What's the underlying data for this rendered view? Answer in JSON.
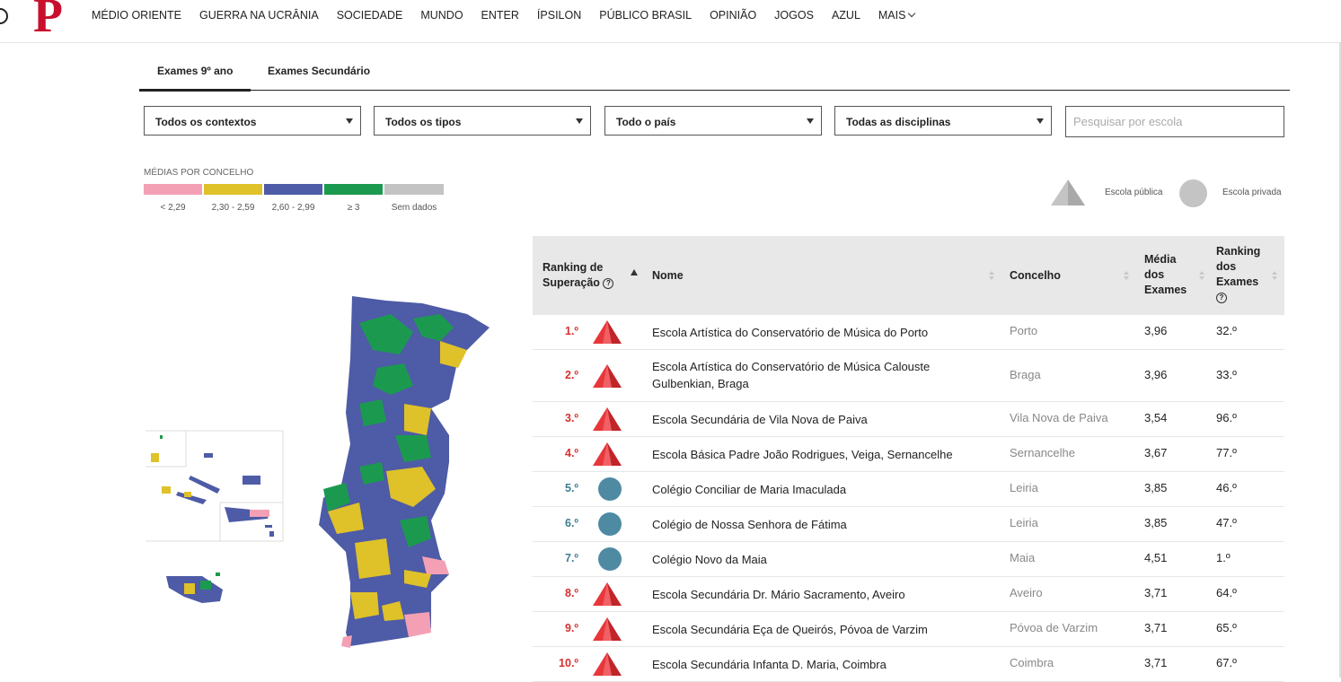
{
  "nav": {
    "items": [
      "MÉDIO ORIENTE",
      "GUERRA NA UCRÂNIA",
      "SOCIEDADE",
      "MUNDO",
      "ENTER",
      "ÍPSILON",
      "PÚBLICO BRASIL",
      "OPINIÃO",
      "JOGOS",
      "AZUL"
    ],
    "more": "MAIS"
  },
  "logo": {
    "letter": "P"
  },
  "tabs": [
    {
      "label": "Exames 9º ano",
      "active": true
    },
    {
      "label": "Exames Secundário",
      "active": false
    }
  ],
  "filters": {
    "contexto": "Todos os contextos",
    "tipo": "Todos os tipos",
    "regiao": "Todo o país",
    "disciplina": "Todas as disciplinas",
    "search_placeholder": "Pesquisar por escola"
  },
  "legend": {
    "title": "MÉDIAS POR CONCELHO",
    "items": [
      {
        "label": "< 2,29",
        "color": "#f4a0b4"
      },
      {
        "label": "2,30 - 2,59",
        "color": "#dfc12a"
      },
      {
        "label": "2,60 - 2,99",
        "color": "#4e5ba6"
      },
      {
        "label": "≥ 3",
        "color": "#1b9a4f"
      },
      {
        "label": "Sem dados",
        "color": "#c3c3c3"
      }
    ],
    "publica": "Escola pública",
    "privada": "Escola privada"
  },
  "table": {
    "headers": {
      "ranking": "Ranking de Superação",
      "nome": "Nome",
      "concelho": "Concelho",
      "media": "Média dos Exames",
      "ranking_exames": "Ranking dos Exames"
    },
    "rows": [
      {
        "rank": "1.º",
        "type": "publica",
        "nome": "Escola Artística do Conservatório de Música do Porto",
        "concelho": "Porto",
        "media": "3,96",
        "ranking_exames": "32.º"
      },
      {
        "rank": "2.º",
        "type": "publica",
        "nome": "Escola Artística do Conservatório de Música Calouste Gulbenkian, Braga",
        "concelho": "Braga",
        "media": "3,96",
        "ranking_exames": "33.º"
      },
      {
        "rank": "3.º",
        "type": "publica",
        "nome": "Escola Secundária de Vila Nova de Paiva",
        "concelho": "Vila Nova de Paiva",
        "media": "3,54",
        "ranking_exames": "96.º"
      },
      {
        "rank": "4.º",
        "type": "publica",
        "nome": "Escola Básica Padre João Rodrigues, Veiga, Sernancelhe",
        "concelho": "Sernancelhe",
        "media": "3,67",
        "ranking_exames": "77.º"
      },
      {
        "rank": "5.º",
        "type": "privada",
        "nome": "Colégio Conciliar de Maria Imaculada",
        "concelho": "Leiria",
        "media": "3,85",
        "ranking_exames": "46.º"
      },
      {
        "rank": "6.º",
        "type": "privada",
        "nome": "Colégio de Nossa Senhora de Fátima",
        "concelho": "Leiria",
        "media": "3,85",
        "ranking_exames": "47.º"
      },
      {
        "rank": "7.º",
        "type": "privada",
        "nome": "Colégio Novo da Maia",
        "concelho": "Maia",
        "media": "4,51",
        "ranking_exames": "1.º"
      },
      {
        "rank": "8.º",
        "type": "publica",
        "nome": "Escola Secundária Dr. Mário Sacramento, Aveiro",
        "concelho": "Aveiro",
        "media": "3,71",
        "ranking_exames": "64.º"
      },
      {
        "rank": "9.º",
        "type": "publica",
        "nome": "Escola Secundária Eça de Queirós, Póvoa de Varzim",
        "concelho": "Póvoa de Varzim",
        "media": "3,71",
        "ranking_exames": "65.º"
      },
      {
        "rank": "10.º",
        "type": "publica",
        "nome": "Escola Secundária Infanta D. Maria, Coimbra",
        "concelho": "Coimbra",
        "media": "3,71",
        "ranking_exames": "67.º"
      }
    ]
  },
  "colors": {
    "brand_red": "#c8102e",
    "publica": "#e8373a",
    "privada": "#4f8aa3"
  }
}
